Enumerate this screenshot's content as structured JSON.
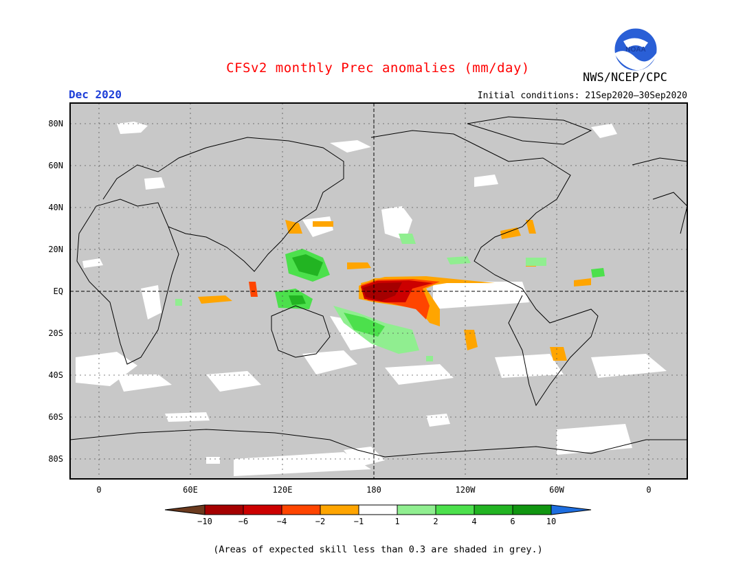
{
  "title": "CFSv2 monthly Prec anomalies (mm/day)",
  "month": "Dec 2020",
  "organization": "NWS/NCEP/CPC",
  "logo_text": "NOAA",
  "initial_conditions": "Initial conditions: 21Sep2020–30Sep2020",
  "lat_labels": [
    "80N",
    "60N",
    "40N",
    "20N",
    "EQ",
    "20S",
    "40S",
    "60S",
    "80S"
  ],
  "lon_labels": [
    "0",
    "60E",
    "120E",
    "180",
    "120W",
    "60W",
    "0"
  ],
  "colorbar": {
    "labels": [
      "−10",
      "−6",
      "−4",
      "−2",
      "−1",
      "1",
      "2",
      "4",
      "6",
      "10"
    ],
    "colors": [
      "#6b3a1e",
      "#a50000",
      "#cc0000",
      "#ff4500",
      "#ffa500",
      "#ffffff",
      "#90ee90",
      "#4ce04c",
      "#22b422",
      "#119611",
      "#1e6ee0"
    ]
  },
  "footnote": "(Areas of expected skill less than 0.3 are shaded in grey.)",
  "colors": {
    "title": "#ff0000",
    "month": "#1e3fd8",
    "grey_mask": "#c8c8c8"
  }
}
